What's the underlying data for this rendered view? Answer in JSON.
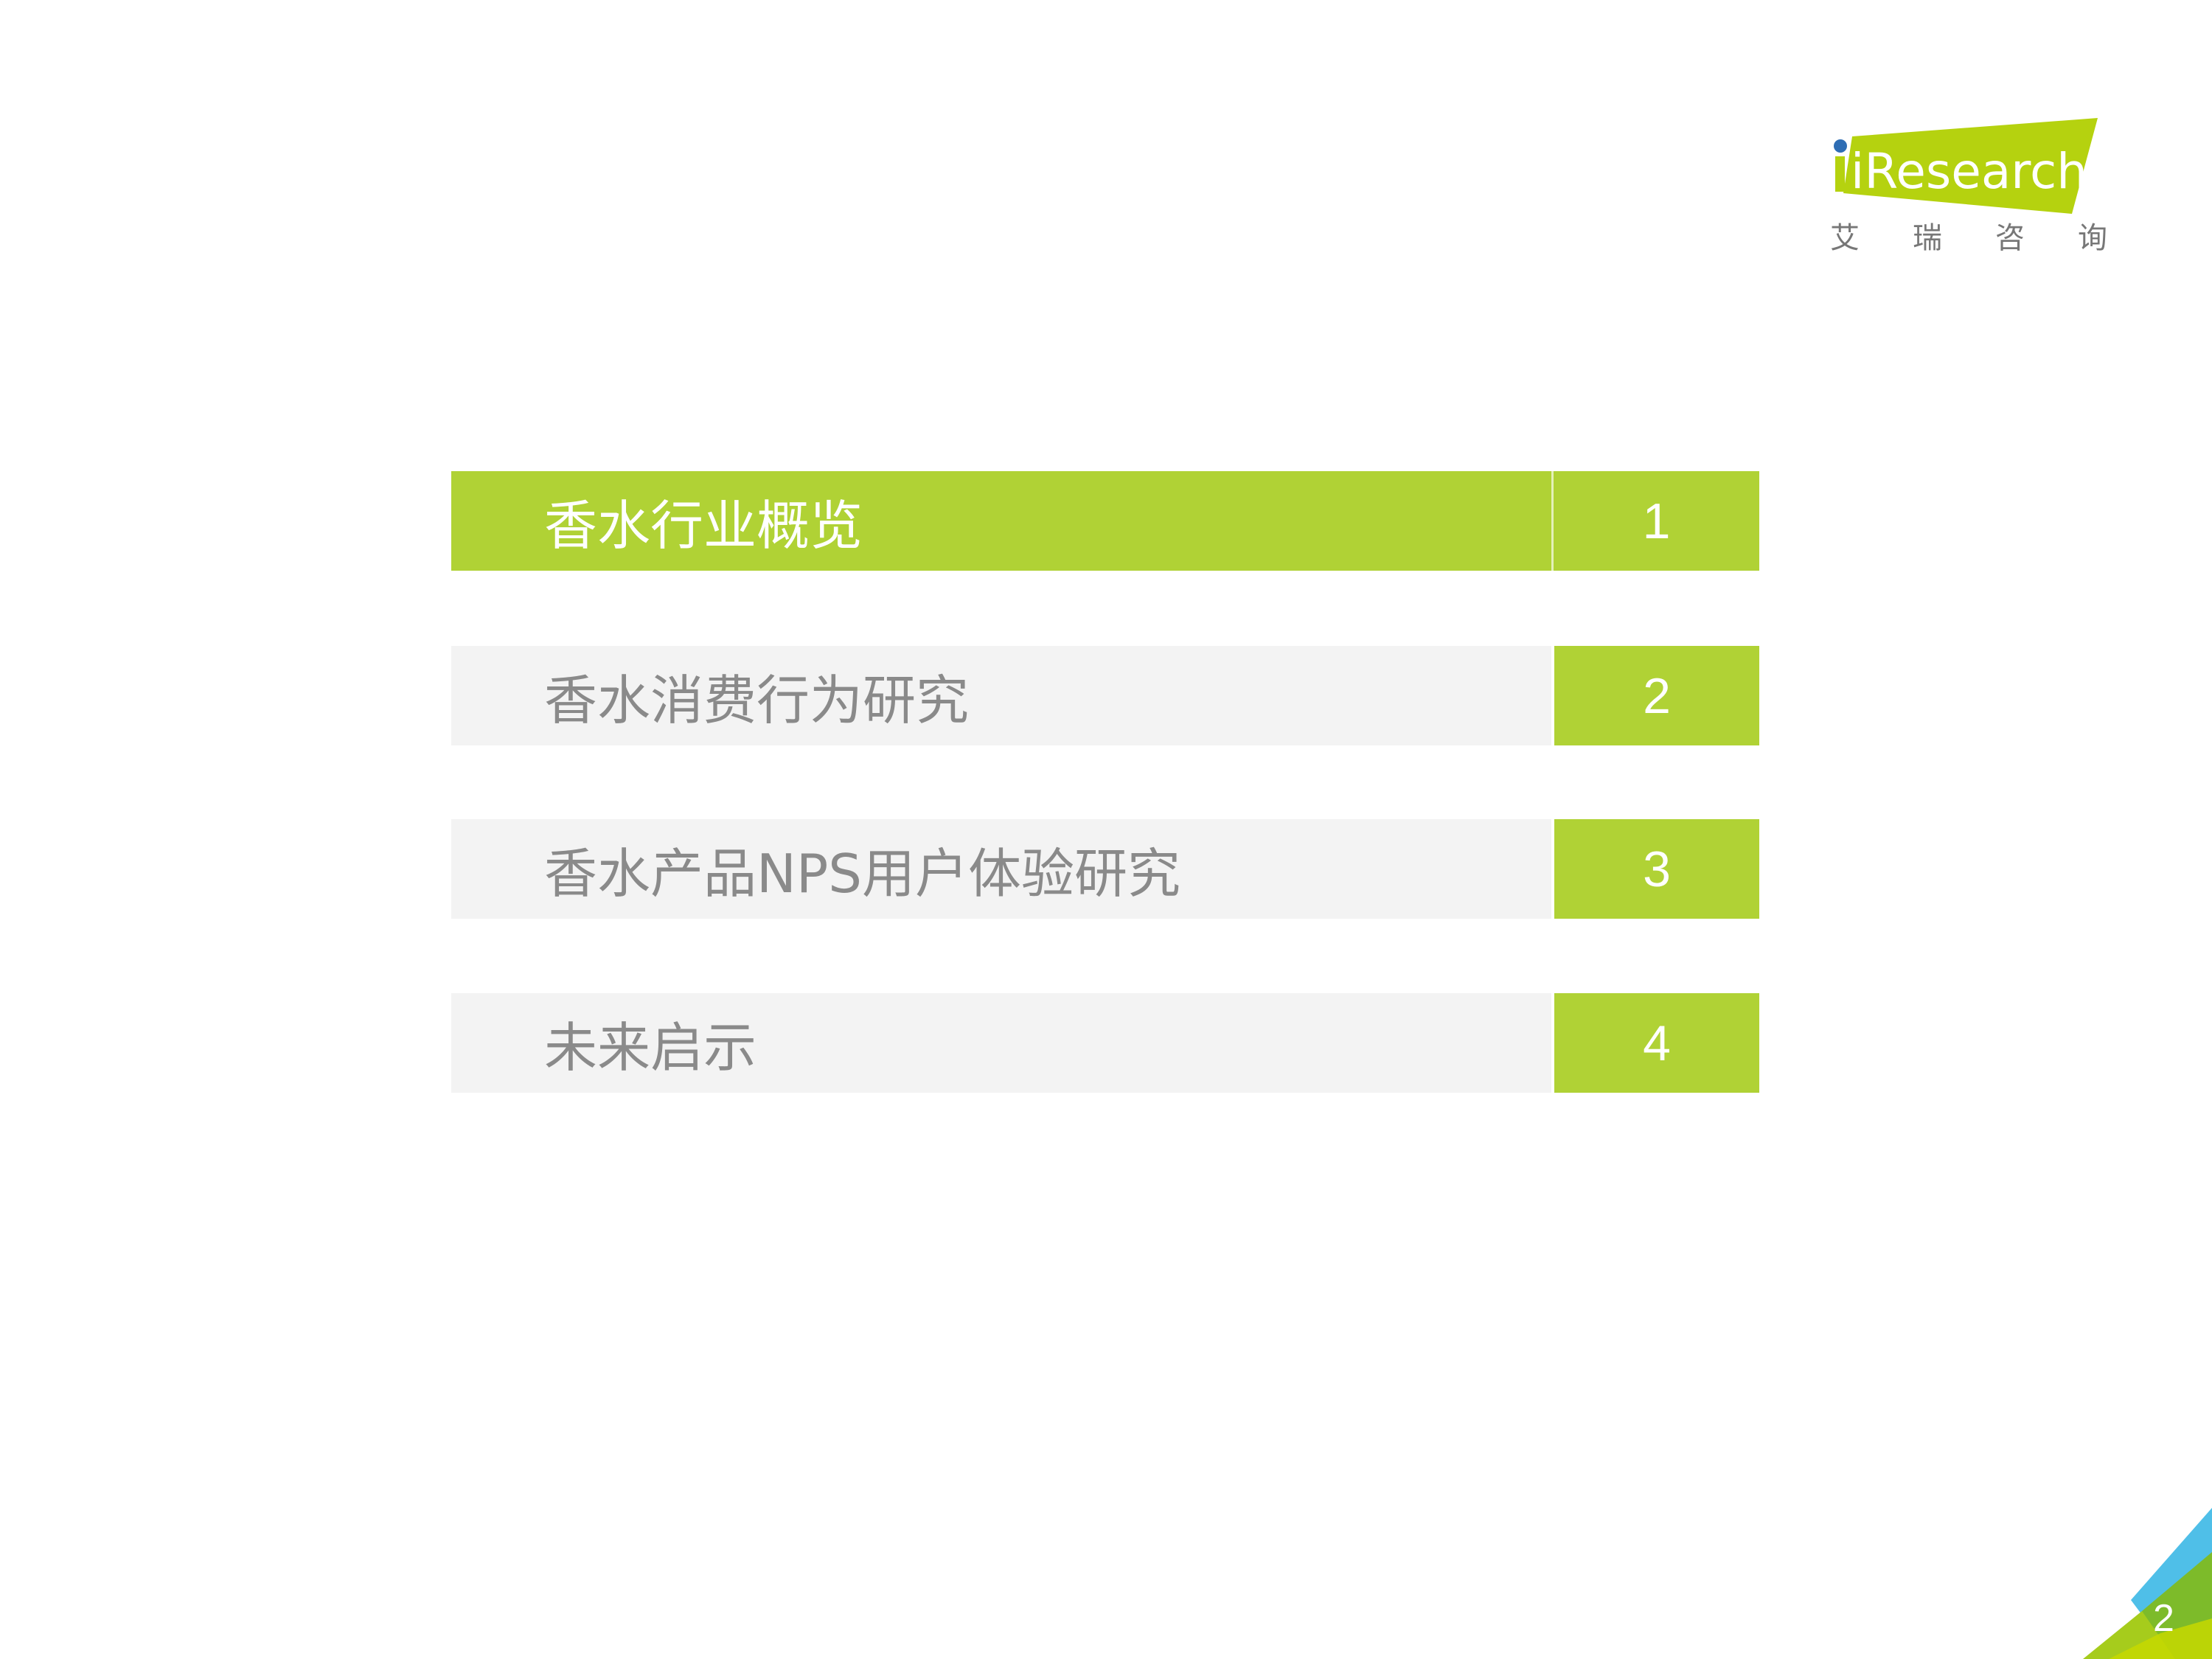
{
  "logo": {
    "brand": "iResearch",
    "chinese_chars": [
      "艾",
      "瑞",
      "咨",
      "询"
    ],
    "accent": "#b5d20f",
    "dot": "#2e6db4"
  },
  "toc": [
    {
      "title": "香水行业概览",
      "number": "1",
      "active": true
    },
    {
      "title": "香水消费行为研究",
      "number": "2",
      "active": false
    },
    {
      "title": "香水产品NPS用户体验研究",
      "number": "3",
      "active": false
    },
    {
      "title": "未来启示",
      "number": "4",
      "active": false
    }
  ],
  "colors": {
    "green": "#b0d235",
    "gray_bg": "#f3f3f3",
    "text_gray": "#8a8a8a",
    "corner_blue": "#4fbfe8"
  },
  "page_number": "2"
}
